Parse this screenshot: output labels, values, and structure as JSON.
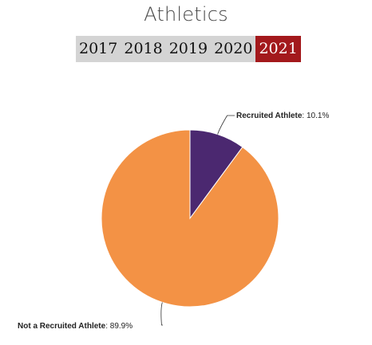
{
  "page": {
    "title": "Athletics"
  },
  "year_tabs": {
    "items": [
      "2017",
      "2018",
      "2019",
      "2020",
      "2021"
    ],
    "selected": "2021"
  },
  "colors": {
    "tab_bar": "#d4d4d4",
    "tab_active": "#a3191c",
    "recruited": "#4b2870",
    "not_recruited": "#f39245"
  },
  "chart_data": {
    "type": "pie",
    "labels": [
      "Recruited Athlete",
      "Not a Recruited Athlete"
    ],
    "values": [
      10.1,
      89.9
    ],
    "value_labels": [
      "10.1%",
      "89.9%"
    ],
    "colors": [
      "#4b2870",
      "#f39245"
    ],
    "start_angle": "12 o'clock",
    "direction": "clockwise",
    "legend": "none"
  }
}
